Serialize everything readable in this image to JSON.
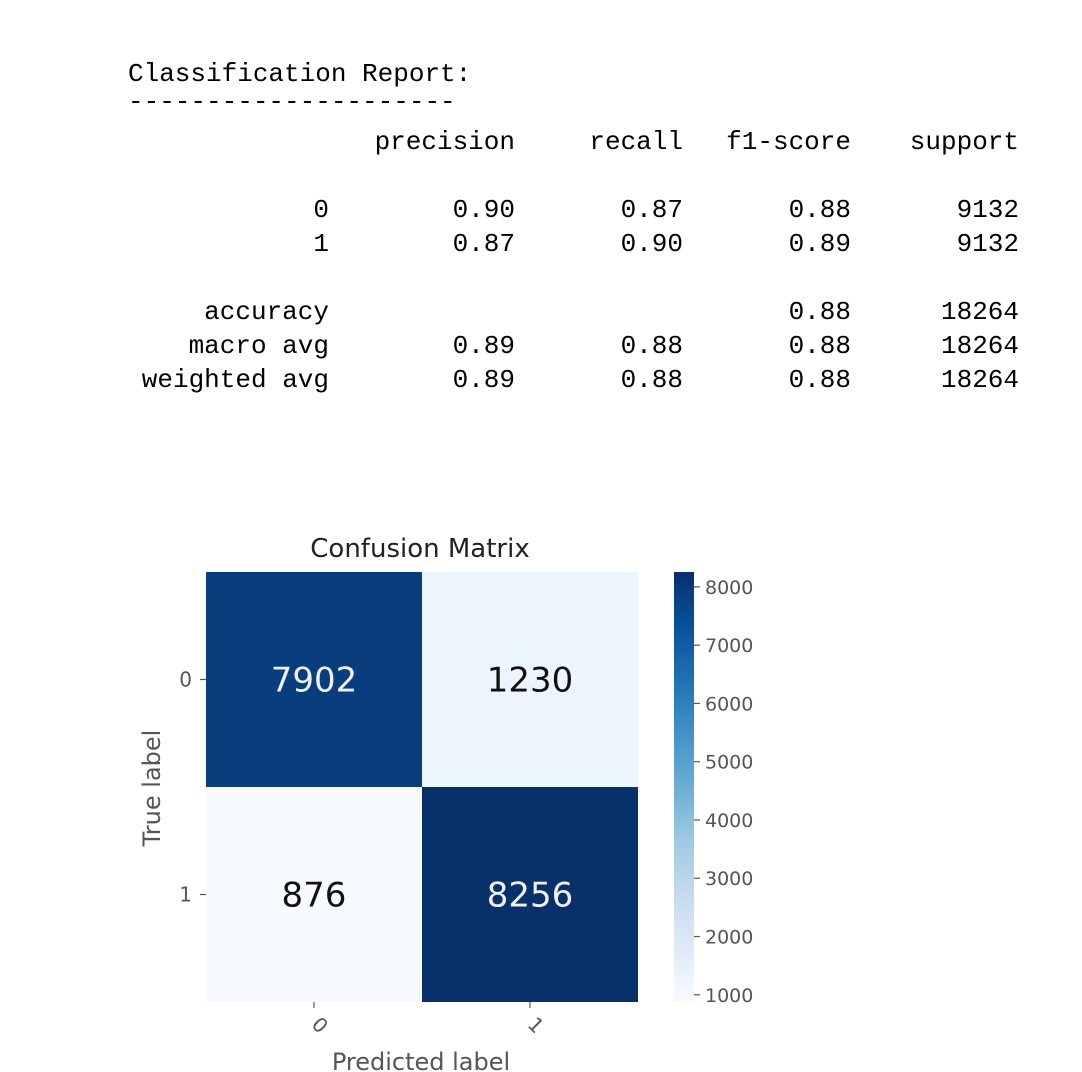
{
  "report": {
    "title": "Classification Report:",
    "rule": "---------------------",
    "headers": [
      "precision",
      "recall",
      "f1-score",
      "support"
    ],
    "rows": [
      {
        "label": "0",
        "cells": [
          "0.90",
          "0.87",
          "0.88",
          "9132"
        ]
      },
      {
        "label": "1",
        "cells": [
          "0.87",
          "0.90",
          "0.89",
          "9132"
        ]
      },
      {
        "label": "accuracy",
        "cells": [
          "",
          "",
          "0.88",
          "18264"
        ]
      },
      {
        "label": "macro avg",
        "cells": [
          "0.89",
          "0.88",
          "0.88",
          "18264"
        ]
      },
      {
        "label": "weighted avg",
        "cells": [
          "0.89",
          "0.88",
          "0.88",
          "18264"
        ]
      }
    ]
  },
  "chart_data": {
    "type": "heatmap",
    "title": "Confusion Matrix",
    "xlabel": "Predicted label",
    "ylabel": "True label",
    "x_categories": [
      "0",
      "1"
    ],
    "y_categories": [
      "0",
      "1"
    ],
    "values": [
      [
        7902,
        1230
      ],
      [
        876,
        8256
      ]
    ],
    "colormap": "Blues",
    "colorbar": {
      "min": 876,
      "max": 8256,
      "ticks": [
        1000,
        2000,
        3000,
        4000,
        5000,
        6000,
        7000,
        8000
      ]
    },
    "colors": {
      "dark": "#08306b",
      "mid": "#4a98c9",
      "light": "#f7fbff",
      "axis_text": "#555555",
      "cell_text_dark": "#111111",
      "cell_text_light": "#f0f0f0"
    }
  }
}
